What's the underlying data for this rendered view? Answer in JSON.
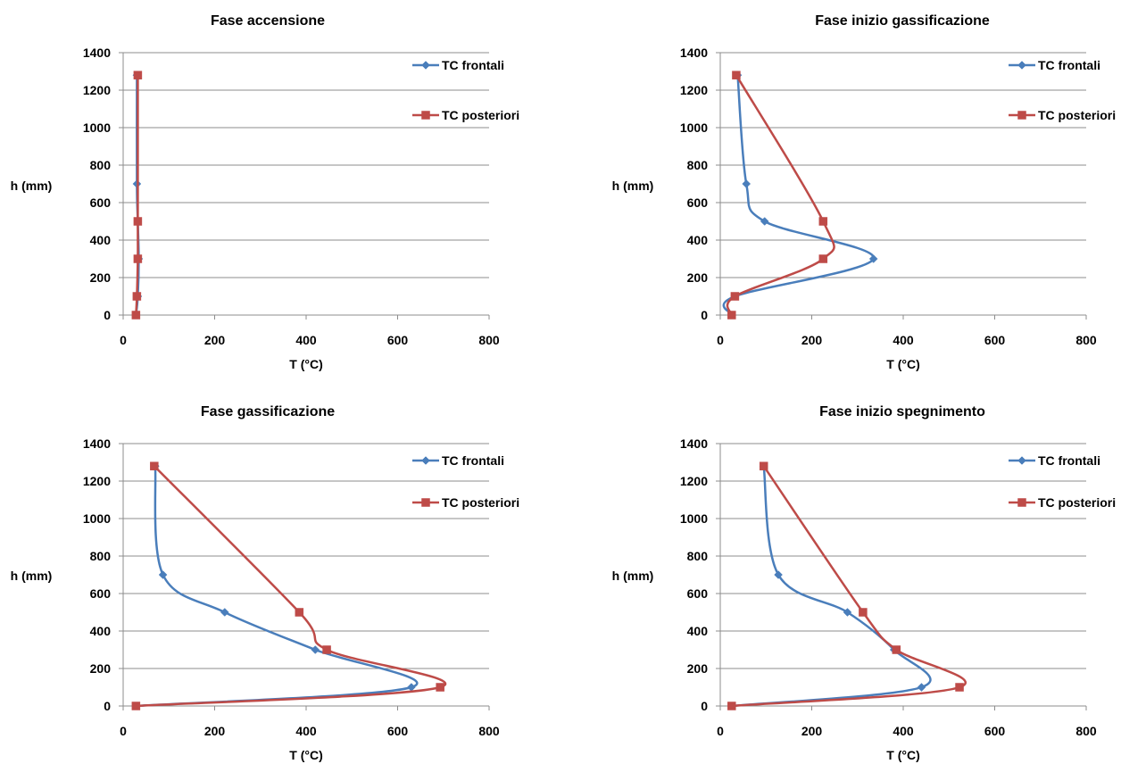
{
  "chart_data": [
    {
      "type": "line",
      "title": "Fase accensione",
      "xlabel": "T (°C)",
      "ylabel": "h (mm)",
      "xlim": [
        0,
        800
      ],
      "ylim": [
        0,
        1400
      ],
      "xticks": [
        "0",
        "200",
        "400",
        "600",
        "800"
      ],
      "yticks": [
        "0",
        "200",
        "400",
        "600",
        "800",
        "1000",
        "1200",
        "1400"
      ],
      "grid": "horizontal",
      "legend": "right",
      "series": [
        {
          "name": "TC frontali",
          "color": "#4a7ebb",
          "marker": "diamond",
          "points": [
            [
              30,
              1280
            ],
            [
              30,
              700
            ],
            [
              32,
              500
            ],
            [
              34,
              300
            ],
            [
              32,
              100
            ],
            [
              28,
              0
            ]
          ]
        },
        {
          "name": "TC posteriori",
          "color": "#be4b48",
          "marker": "square",
          "points": [
            [
              32,
              1280
            ],
            [
              32,
              500
            ],
            [
              32,
              300
            ],
            [
              30,
              100
            ],
            [
              28,
              0
            ]
          ]
        }
      ]
    },
    {
      "type": "line",
      "title": "Fase inizio gassificazione",
      "xlabel": "T (°C)",
      "ylabel": "h (mm)",
      "xlim": [
        0,
        800
      ],
      "ylim": [
        0,
        1400
      ],
      "xticks": [
        "0",
        "200",
        "400",
        "600",
        "800"
      ],
      "yticks": [
        "0",
        "200",
        "400",
        "600",
        "800",
        "1000",
        "1200",
        "1400"
      ],
      "grid": "horizontal",
      "legend": "right",
      "series": [
        {
          "name": "TC frontali",
          "color": "#4a7ebb",
          "marker": "diamond",
          "points": [
            [
              38,
              1280
            ],
            [
              57,
              700
            ],
            [
              97,
              500
            ],
            [
              335,
              300
            ],
            [
              32,
              100
            ],
            [
              25,
              0
            ]
          ]
        },
        {
          "name": "TC posteriori",
          "color": "#be4b48",
          "marker": "square",
          "points": [
            [
              35,
              1280
            ],
            [
              225,
              500
            ],
            [
              225,
              300
            ],
            [
              32,
              100
            ],
            [
              25,
              0
            ]
          ]
        }
      ]
    },
    {
      "type": "line",
      "title": "Fase  gassificazione",
      "xlabel": "T (°C)",
      "ylabel": "h (mm)",
      "xlim": [
        0,
        800
      ],
      "ylim": [
        0,
        1400
      ],
      "xticks": [
        "0",
        "200",
        "400",
        "600",
        "800"
      ],
      "yticks": [
        "0",
        "200",
        "400",
        "600",
        "800",
        "1000",
        "1200",
        "1400"
      ],
      "grid": "horizontal",
      "legend": "right",
      "series": [
        {
          "name": "TC frontali",
          "color": "#4a7ebb",
          "marker": "diamond",
          "points": [
            [
              70,
              1280
            ],
            [
              87,
              700
            ],
            [
              222,
              500
            ],
            [
              420,
              300
            ],
            [
              630,
              100
            ],
            [
              28,
              0
            ]
          ]
        },
        {
          "name": "TC posteriori",
          "color": "#be4b48",
          "marker": "square",
          "points": [
            [
              68,
              1280
            ],
            [
              385,
              500
            ],
            [
              445,
              300
            ],
            [
              693,
              100
            ],
            [
              28,
              0
            ]
          ]
        }
      ]
    },
    {
      "type": "line",
      "title": "Fase  inizio  spegnimento",
      "xlabel": "T (°C)",
      "ylabel": "h (mm)",
      "xlim": [
        0,
        800
      ],
      "ylim": [
        0,
        1400
      ],
      "xticks": [
        "0",
        "200",
        "400",
        "600",
        "800"
      ],
      "yticks": [
        "0",
        "200",
        "400",
        "600",
        "800",
        "1000",
        "1200",
        "1400"
      ],
      "grid": "horizontal",
      "legend": "right",
      "series": [
        {
          "name": "TC frontali",
          "color": "#4a7ebb",
          "marker": "diamond",
          "points": [
            [
              95,
              1280
            ],
            [
              127,
              700
            ],
            [
              278,
              500
            ],
            [
              380,
              300
            ],
            [
              440,
              100
            ],
            [
              25,
              0
            ]
          ]
        },
        {
          "name": "TC posteriori",
          "color": "#be4b48",
          "marker": "square",
          "points": [
            [
              95,
              1280
            ],
            [
              312,
              500
            ],
            [
              385,
              300
            ],
            [
              523,
              100
            ],
            [
              25,
              0
            ]
          ]
        }
      ]
    }
  ]
}
